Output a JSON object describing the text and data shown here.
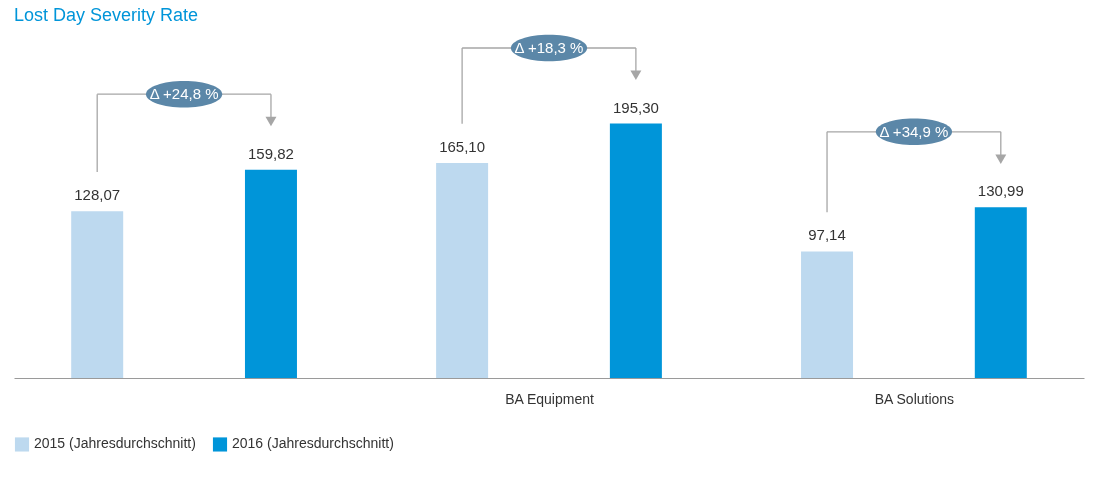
{
  "chart_data": {
    "type": "bar",
    "title": "Lost Day Severity Rate",
    "categories": [
      null,
      "BA Equipment",
      "BA Solutions"
    ],
    "tick_labels": "x",
    "legend": "bottom",
    "annotations": [
      "Δ +24,8 %",
      "Δ +18,3 %",
      "Δ +34,9 %"
    ],
    "series": [
      {
        "name": "2015 (Jahresdurchschnitt)",
        "color": "#bdd9ef",
        "values": [
          128.07,
          165.1,
          97.14
        ],
        "value_labels": [
          "128,07",
          "165,10",
          "97,14"
        ]
      },
      {
        "name": "2016 (Jahresdurchschnitt)",
        "color": "#0095d9",
        "values": [
          159.82,
          195.3,
          130.99
        ],
        "value_labels": [
          "159,82",
          "195,30",
          "130,99"
        ]
      }
    ]
  }
}
